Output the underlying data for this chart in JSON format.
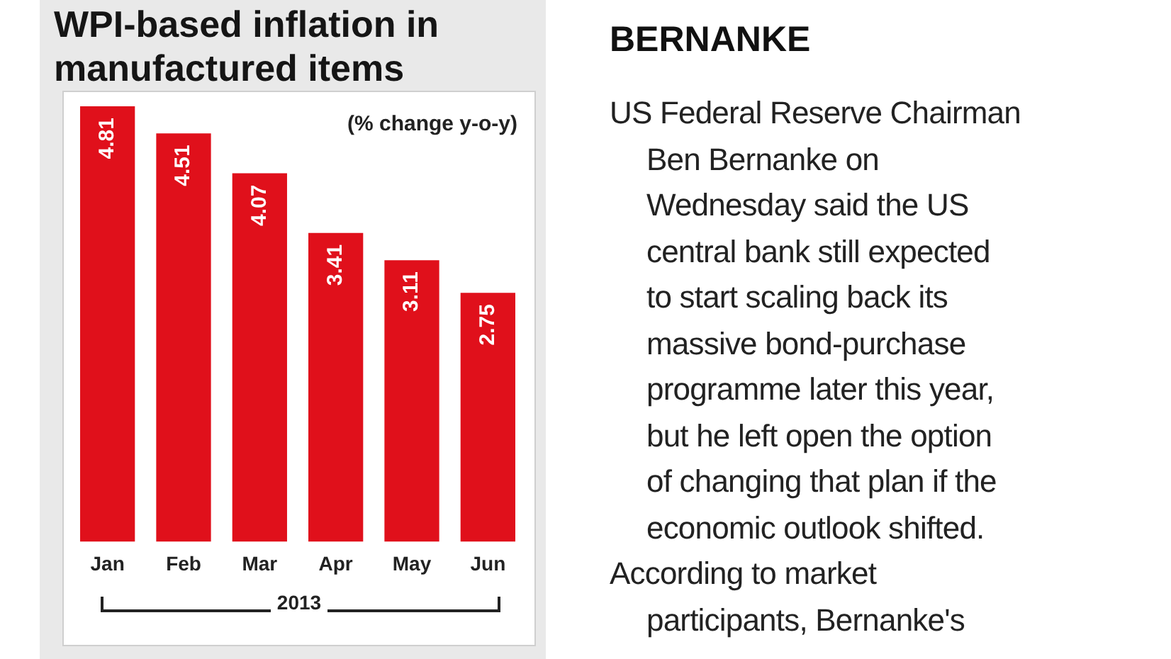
{
  "chart_data": {
    "type": "bar",
    "title": "WPI-based inflation in manufactured items",
    "subtitle": "(% change y-o-y)",
    "categories": [
      "Jan",
      "Feb",
      "Mar",
      "Apr",
      "May",
      "Jun"
    ],
    "values": [
      4.81,
      4.51,
      4.07,
      3.41,
      3.11,
      2.75
    ],
    "color": "#e0101b",
    "data_labels": true,
    "annotations": [
      "2013",
      "BERNANKE",
      "US Federal Reserve Chairman\nBen Bernanke on\nWednesday said the US\ncentral bank still expected\nto start scaling back its\nmassive bond-purchase\nprogramme later this year,\nbut he left open the option\nof changing that plan if the\neconomic outlook shifted.",
      "According to market\nparticipants, Bernanke's"
    ]
  }
}
